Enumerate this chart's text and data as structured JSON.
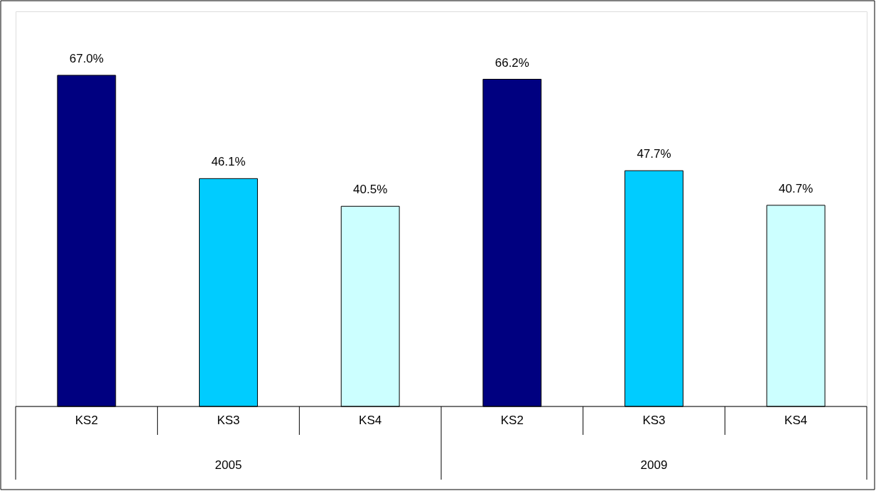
{
  "chart_data": {
    "type": "bar",
    "categories": [
      "KS2",
      "KS3",
      "KS4",
      "KS2",
      "KS3",
      "KS4"
    ],
    "values": [
      67.0,
      46.1,
      40.5,
      66.2,
      47.7,
      40.7
    ],
    "colors": [
      "#000080",
      "#00ccff",
      "#ccffff",
      "#000080",
      "#00ccff",
      "#ccffff"
    ],
    "value_labels": [
      "67.0%",
      "46.1%",
      "40.5%",
      "66.2%",
      "47.7%",
      "40.7%"
    ],
    "annotations": [
      "2005",
      "2009"
    ]
  }
}
